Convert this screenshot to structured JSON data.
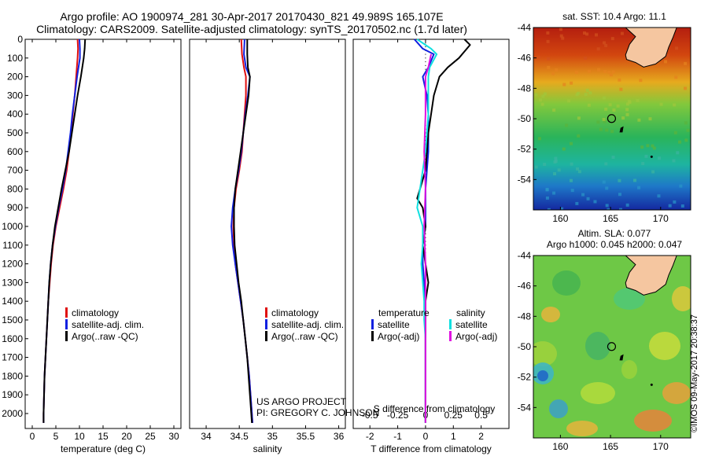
{
  "header": {
    "line1": "Argo profile: AO 1900974_281 30-Apr-2017 20170430_821 49.989S 165.107E",
    "line2": "Climatology: CARS2009. Satellite-adjusted climatology: synTS_20170502.nc (1.7d later)"
  },
  "credits": {
    "project": "US ARGO PROJECT",
    "pi": "PI: GREGORY C. JOHNSON"
  },
  "stamp": "©IMOS 09-May-2017 20:38:37",
  "maps": {
    "sst_title": "sat. SST: 10.4  Argo: 11.1",
    "sla_title1": "Altim. SLA: 0.077",
    "sla_title2": "Argo h1000: 0.045 h2000: 0.047",
    "lat_ticks": [
      -44,
      -46,
      -48,
      -50,
      -52,
      -54
    ],
    "lon_ticks": [
      160,
      165,
      170
    ],
    "xlim": [
      157.3,
      173.0
    ],
    "ylim": [
      -56,
      -44
    ],
    "float": {
      "lon": 165.107,
      "lat": -49.989
    },
    "colors": {
      "land": "#f5c6a0",
      "warm": "#b41e0f",
      "cold": "#1428a0"
    }
  },
  "chart_data": [
    {
      "type": "line",
      "xlabel": "temperature (deg C)",
      "xlim": [
        -1.5,
        31.5
      ],
      "ylim": [
        2080,
        0
      ],
      "x_ticks": [
        0,
        5,
        10,
        15,
        20,
        25,
        30
      ],
      "y_ticks": [
        0,
        100,
        200,
        300,
        400,
        500,
        600,
        700,
        800,
        900,
        1000,
        1100,
        1200,
        1300,
        1400,
        1500,
        1600,
        1700,
        1800,
        1900,
        2000
      ],
      "legend": [
        "climatology",
        "satellite-adj. clim.",
        "Argo(..raw -QC)"
      ],
      "series": [
        {
          "name": "climatology",
          "color": "#e01010",
          "points": [
            [
              9.6,
              0
            ],
            [
              9.7,
              50
            ],
            [
              9.6,
              100
            ],
            [
              9.3,
              200
            ],
            [
              9.0,
              300
            ],
            [
              8.6,
              400
            ],
            [
              8.2,
              500
            ],
            [
              7.8,
              600
            ],
            [
              7.3,
              700
            ],
            [
              6.6,
              800
            ],
            [
              5.8,
              900
            ],
            [
              5.0,
              1000
            ],
            [
              4.4,
              1100
            ],
            [
              4.0,
              1200
            ],
            [
              3.7,
              1300
            ],
            [
              3.4,
              1400
            ],
            [
              3.2,
              1500
            ],
            [
              3.0,
              1600
            ],
            [
              2.8,
              1700
            ],
            [
              2.6,
              1800
            ],
            [
              2.5,
              1900
            ],
            [
              2.4,
              2000
            ],
            [
              2.4,
              2050
            ]
          ]
        },
        {
          "name": "satellite-adj. clim.",
          "color": "#1020e0",
          "points": [
            [
              10.0,
              0
            ],
            [
              10.1,
              50
            ],
            [
              10.1,
              100
            ],
            [
              9.5,
              200
            ],
            [
              9.0,
              300
            ],
            [
              8.5,
              400
            ],
            [
              8.1,
              500
            ],
            [
              7.6,
              600
            ],
            [
              7.1,
              700
            ],
            [
              6.4,
              800
            ],
            [
              5.6,
              900
            ],
            [
              4.9,
              1000
            ],
            [
              4.3,
              1100
            ],
            [
              3.9,
              1200
            ],
            [
              3.6,
              1300
            ],
            [
              3.4,
              1400
            ],
            [
              3.2,
              1500
            ],
            [
              3.0,
              1600
            ],
            [
              2.8,
              1700
            ],
            [
              2.6,
              1800
            ],
            [
              2.5,
              1900
            ],
            [
              2.4,
              2000
            ],
            [
              2.4,
              2050
            ]
          ]
        },
        {
          "name": "Argo(..raw -QC)",
          "color": "#000000",
          "points": [
            [
              11.2,
              0
            ],
            [
              11.1,
              50
            ],
            [
              10.9,
              100
            ],
            [
              10.3,
              200
            ],
            [
              9.6,
              300
            ],
            [
              9.0,
              400
            ],
            [
              8.4,
              500
            ],
            [
              7.8,
              600
            ],
            [
              7.0,
              700
            ],
            [
              6.2,
              800
            ],
            [
              5.5,
              900
            ],
            [
              4.8,
              1000
            ],
            [
              4.3,
              1100
            ],
            [
              3.9,
              1200
            ],
            [
              3.6,
              1300
            ],
            [
              3.4,
              1400
            ],
            [
              3.2,
              1500
            ],
            [
              3.0,
              1600
            ],
            [
              2.8,
              1700
            ],
            [
              2.6,
              1800
            ],
            [
              2.5,
              1900
            ],
            [
              2.4,
              2000
            ],
            [
              2.4,
              2050
            ]
          ]
        }
      ]
    },
    {
      "type": "line",
      "xlabel": "salinity",
      "xlim": [
        33.75,
        36.1
      ],
      "ylim": [
        2080,
        0
      ],
      "x_ticks": [
        34,
        34.5,
        35,
        35.5,
        36
      ],
      "y_ticks": [],
      "legend": [
        "climatology",
        "satellite-adj. clim.",
        "Argo(..raw -QC)"
      ],
      "series": [
        {
          "name": "climatology",
          "color": "#e01010",
          "points": [
            [
              34.53,
              0
            ],
            [
              34.54,
              80
            ],
            [
              34.57,
              150
            ],
            [
              34.6,
              200
            ],
            [
              34.6,
              300
            ],
            [
              34.58,
              400
            ],
            [
              34.56,
              500
            ],
            [
              34.54,
              600
            ],
            [
              34.5,
              700
            ],
            [
              34.45,
              800
            ],
            [
              34.42,
              900
            ],
            [
              34.41,
              1000
            ],
            [
              34.42,
              1100
            ],
            [
              34.44,
              1200
            ],
            [
              34.48,
              1300
            ],
            [
              34.52,
              1400
            ],
            [
              34.56,
              1500
            ],
            [
              34.59,
              1600
            ],
            [
              34.62,
              1700
            ],
            [
              34.65,
              1800
            ],
            [
              34.67,
              1900
            ],
            [
              34.69,
              2000
            ],
            [
              34.7,
              2050
            ]
          ]
        },
        {
          "name": "satellite-adj. clim.",
          "color": "#1020e0",
          "points": [
            [
              34.58,
              0
            ],
            [
              34.57,
              80
            ],
            [
              34.6,
              150
            ],
            [
              34.66,
              200
            ],
            [
              34.63,
              300
            ],
            [
              34.59,
              400
            ],
            [
              34.56,
              500
            ],
            [
              34.53,
              600
            ],
            [
              34.49,
              700
            ],
            [
              34.44,
              800
            ],
            [
              34.4,
              900
            ],
            [
              34.38,
              1000
            ],
            [
              34.4,
              1100
            ],
            [
              34.44,
              1200
            ],
            [
              34.48,
              1300
            ],
            [
              34.52,
              1400
            ],
            [
              34.56,
              1500
            ],
            [
              34.59,
              1600
            ],
            [
              34.62,
              1700
            ],
            [
              34.65,
              1800
            ],
            [
              34.67,
              1900
            ],
            [
              34.69,
              2000
            ],
            [
              34.7,
              2050
            ]
          ]
        },
        {
          "name": "Argo(..raw -QC)",
          "color": "#000000",
          "points": [
            [
              34.62,
              0
            ],
            [
              34.62,
              80
            ],
            [
              34.63,
              150
            ],
            [
              34.66,
              200
            ],
            [
              34.64,
              300
            ],
            [
              34.6,
              400
            ],
            [
              34.56,
              500
            ],
            [
              34.52,
              600
            ],
            [
              34.48,
              700
            ],
            [
              34.44,
              800
            ],
            [
              34.42,
              900
            ],
            [
              34.42,
              1000
            ],
            [
              34.43,
              1100
            ],
            [
              34.46,
              1200
            ],
            [
              34.49,
              1300
            ],
            [
              34.53,
              1400
            ],
            [
              34.56,
              1500
            ],
            [
              34.59,
              1600
            ],
            [
              34.62,
              1700
            ],
            [
              34.64,
              1800
            ],
            [
              34.66,
              1900
            ],
            [
              34.68,
              2000
            ],
            [
              34.69,
              2050
            ]
          ]
        }
      ]
    },
    {
      "type": "line",
      "xlabel": "T difference from climatology",
      "xlabel_top": "S difference from climatology",
      "xlim": [
        -2.6,
        3.0
      ],
      "ylim": [
        2080,
        0
      ],
      "x_ticks": [
        -2,
        -1,
        0,
        1,
        2
      ],
      "x2_ticks": [
        -0.5,
        -0.25,
        0,
        0.25,
        0.5
      ],
      "x2_tick_labels": [
        "-0.5",
        "-0.25",
        "0",
        "0.25",
        "0.5"
      ],
      "y_ticks": [],
      "legend_titles": [
        "temperature",
        "salinity"
      ],
      "legend": [
        "satellite",
        "Argo(-adj)",
        "satellite",
        "Argo(-adj)"
      ],
      "series": [
        {
          "name": "satellite",
          "group": "temperature",
          "color": "#1020e0",
          "points": [
            [
              -0.4,
              0
            ],
            [
              -0.1,
              50
            ],
            [
              0.3,
              80
            ],
            [
              0.1,
              150
            ],
            [
              -0.1,
              200
            ],
            [
              0.05,
              300
            ],
            [
              0.1,
              400
            ],
            [
              0.1,
              500
            ],
            [
              0.1,
              600
            ],
            [
              0.05,
              700
            ],
            [
              0.0,
              800
            ],
            [
              0.0,
              900
            ],
            [
              0.0,
              1000
            ],
            [
              -0.1,
              1100
            ],
            [
              -0.1,
              1200
            ],
            [
              -0.05,
              1300
            ],
            [
              0.0,
              1400
            ],
            [
              0.0,
              1500
            ],
            [
              0.0,
              1600
            ],
            [
              0.0,
              1700
            ],
            [
              0.0,
              1800
            ],
            [
              0.0,
              1900
            ],
            [
              0.0,
              2000
            ],
            [
              0.0,
              2050
            ]
          ]
        },
        {
          "name": "Argo(-adj)",
          "group": "temperature",
          "color": "#000000",
          "points": [
            [
              1.4,
              0
            ],
            [
              1.6,
              30
            ],
            [
              1.2,
              100
            ],
            [
              0.8,
              150
            ],
            [
              0.5,
              200
            ],
            [
              0.3,
              300
            ],
            [
              0.1,
              500
            ],
            [
              0.0,
              700
            ],
            [
              -0.2,
              800
            ],
            [
              -0.3,
              850
            ],
            [
              -0.1,
              900
            ],
            [
              0.0,
              1000
            ],
            [
              -0.1,
              1100
            ],
            [
              0.0,
              1200
            ],
            [
              0.1,
              1300
            ],
            [
              0.0,
              1400
            ],
            [
              0.0,
              1600
            ],
            [
              0.0,
              1800
            ],
            [
              0.0,
              1900
            ],
            [
              0.0,
              2050
            ]
          ]
        },
        {
          "name": "satellite",
          "group": "salinity",
          "color": "#10e0e0",
          "points": [
            [
              -0.3,
              0
            ],
            [
              0.2,
              50
            ],
            [
              0.4,
              80
            ],
            [
              0.15,
              150
            ],
            [
              0.1,
              200
            ],
            [
              0.1,
              300
            ],
            [
              0.1,
              400
            ],
            [
              0.05,
              500
            ],
            [
              0.0,
              600
            ],
            [
              -0.1,
              700
            ],
            [
              -0.2,
              800
            ],
            [
              -0.3,
              900
            ],
            [
              -0.1,
              1000
            ],
            [
              -0.1,
              1100
            ],
            [
              -0.15,
              1200
            ],
            [
              -0.1,
              1300
            ],
            [
              -0.05,
              1400
            ],
            [
              -0.05,
              1500
            ],
            [
              0.0,
              1600
            ],
            [
              0.0,
              1700
            ],
            [
              0.0,
              1800
            ],
            [
              0.0,
              1900
            ],
            [
              0.0,
              2050
            ]
          ]
        },
        {
          "name": "Argo(-adj)",
          "group": "salinity",
          "color": "#e010e0",
          "points": [
            [
              0.2,
              80
            ],
            [
              0.1,
              150
            ],
            [
              0.0,
              200
            ],
            [
              0.0,
              400
            ],
            [
              -0.05,
              600
            ],
            [
              0.0,
              800
            ],
            [
              -0.05,
              1000
            ],
            [
              0.0,
              1200
            ],
            [
              0.0,
              1400
            ],
            [
              0.0,
              1600
            ],
            [
              0.0,
              1800
            ],
            [
              0.0,
              2000
            ],
            [
              0.0,
              2050
            ]
          ]
        }
      ]
    }
  ]
}
